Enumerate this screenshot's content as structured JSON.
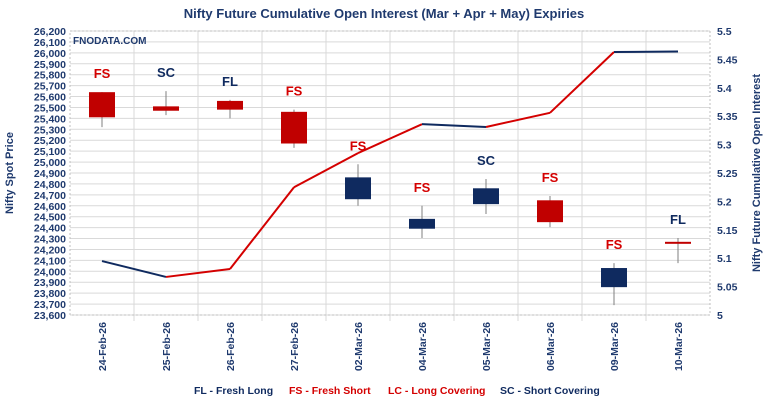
{
  "chart_data": {
    "type": "candlestick+line",
    "title": "Nifty Future Cumulative Open Interest (Mar + Apr + May) Expiries",
    "watermark": "FNODATA.COM",
    "ylabel_left": "Nifty Spot Price",
    "ylabel_right": "Nifty Future Cumulative Open Interest",
    "ylim_left": [
      23600,
      26200
    ],
    "yticks_left": [
      "23,600",
      "23,700",
      "23,800",
      "23,900",
      "24,000",
      "24,100",
      "24,200",
      "24,300",
      "24,400",
      "24,500",
      "24,600",
      "24,700",
      "24,800",
      "24,900",
      "25,000",
      "25,100",
      "25,200",
      "25,300",
      "25,400",
      "25,500",
      "25,600",
      "25,700",
      "25,800",
      "25,900",
      "26,000",
      "26,100",
      "26,200"
    ],
    "ylim_right": [
      5,
      5.5
    ],
    "yticks_right": [
      "5",
      "5.05",
      "5.1",
      "5.15",
      "5.2",
      "5.25",
      "5.3",
      "5.35",
      "5.4",
      "5.45",
      "5.5"
    ],
    "grid": true,
    "categories": [
      "24-Feb-26",
      "25-Feb-26",
      "26-Feb-26",
      "27-Feb-26",
      "02-Mar-26",
      "04-Mar-26",
      "05-Mar-26",
      "06-Mar-26",
      "09-Mar-26",
      "10-Mar-26"
    ],
    "candles": [
      {
        "open": 25640,
        "high": 25640,
        "low": 25320,
        "close": 25410,
        "label": "FS"
      },
      {
        "open": 25510,
        "high": 25650,
        "low": 25430,
        "close": 25470,
        "label": "SC"
      },
      {
        "open": 25560,
        "high": 25570,
        "low": 25400,
        "close": 25480,
        "label": "FL"
      },
      {
        "open": 25460,
        "high": 25480,
        "low": 25130,
        "close": 25170,
        "label": "FS"
      },
      {
        "open": 24660,
        "high": 24980,
        "low": 24600,
        "close": 24860,
        "label": "FS"
      },
      {
        "open": 24390,
        "high": 24600,
        "low": 24305,
        "close": 24480,
        "label": "FS"
      },
      {
        "open": 24615,
        "high": 24845,
        "low": 24525,
        "close": 24760,
        "label": "SC"
      },
      {
        "open": 24650,
        "high": 24690,
        "low": 24405,
        "close": 24450,
        "label": "FS"
      },
      {
        "open": 23855,
        "high": 24075,
        "low": 23690,
        "close": 24030,
        "label": "FS"
      },
      {
        "open": 24270,
        "high": 24305,
        "low": 24075,
        "close": 24265,
        "label": "FL"
      }
    ],
    "open_interest": [
      5.095,
      5.067,
      5.081,
      5.225,
      5.285,
      5.336,
      5.331,
      5.356,
      5.463,
      5.464
    ],
    "legend": [
      {
        "text": "FL - Fresh Long",
        "color": "#0f2a5f"
      },
      {
        "text": "FS - Fresh Short",
        "color": "#d40000"
      },
      {
        "text": "LC - Long Covering",
        "color": "#d40000"
      },
      {
        "text": "SC - Short Covering",
        "color": "#0f2a5f"
      }
    ],
    "colors": {
      "up": "#0f2a5f",
      "down": "#c00000",
      "label_short": "#d40000",
      "label_long": "#0f2a5f",
      "axis_text": "#1f3a6e",
      "grid": "#d9d9d9"
    }
  }
}
